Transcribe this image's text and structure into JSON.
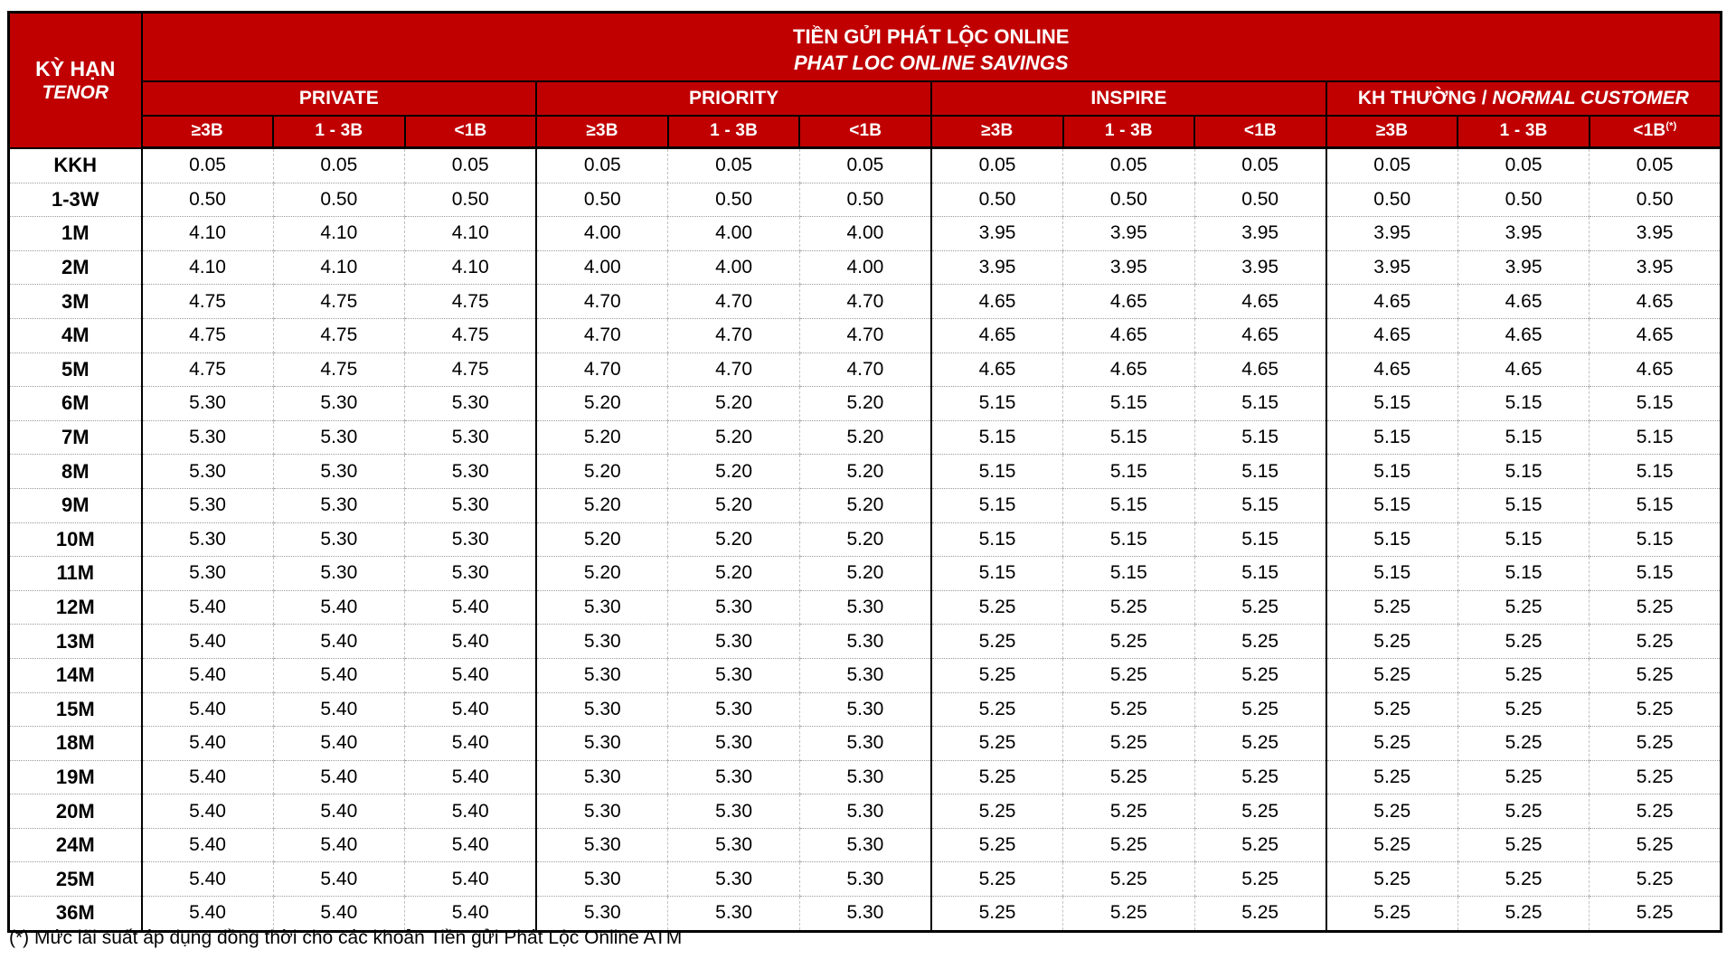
{
  "title": {
    "line1": "TIỀN GỬI PHÁT LỘC ONLINE",
    "line2": "PHAT LOC ONLINE SAVINGS"
  },
  "tenor_header": {
    "line1": "KỲ HẠN",
    "line2": "TENOR"
  },
  "groups": [
    {
      "label": "PRIVATE",
      "label_sep": "",
      "label_italic": "",
      "subcols": [
        "≥3B",
        "1 - 3B",
        "<1B"
      ]
    },
    {
      "label": "PRIORITY",
      "label_sep": "",
      "label_italic": "",
      "subcols": [
        "≥3B",
        "1 - 3B",
        "<1B"
      ]
    },
    {
      "label": "INSPIRE",
      "label_sep": "",
      "label_italic": "",
      "subcols": [
        "≥3B",
        "1 - 3B",
        "<1B"
      ]
    },
    {
      "label": "KH THƯỜNG",
      "label_sep": " / ",
      "label_italic": "NORMAL CUSTOMER",
      "subcols": [
        "≥3B",
        "1 - 3B",
        "<1B"
      ],
      "last_subcol_sup": "(*)"
    }
  ],
  "rows": [
    {
      "tenor": "KKH",
      "values": [
        "0.05",
        "0.05",
        "0.05",
        "0.05",
        "0.05",
        "0.05",
        "0.05",
        "0.05",
        "0.05",
        "0.05",
        "0.05",
        "0.05"
      ]
    },
    {
      "tenor": "1-3W",
      "values": [
        "0.50",
        "0.50",
        "0.50",
        "0.50",
        "0.50",
        "0.50",
        "0.50",
        "0.50",
        "0.50",
        "0.50",
        "0.50",
        "0.50"
      ]
    },
    {
      "tenor": "1M",
      "values": [
        "4.10",
        "4.10",
        "4.10",
        "4.00",
        "4.00",
        "4.00",
        "3.95",
        "3.95",
        "3.95",
        "3.95",
        "3.95",
        "3.95"
      ]
    },
    {
      "tenor": "2M",
      "values": [
        "4.10",
        "4.10",
        "4.10",
        "4.00",
        "4.00",
        "4.00",
        "3.95",
        "3.95",
        "3.95",
        "3.95",
        "3.95",
        "3.95"
      ]
    },
    {
      "tenor": "3M",
      "values": [
        "4.75",
        "4.75",
        "4.75",
        "4.70",
        "4.70",
        "4.70",
        "4.65",
        "4.65",
        "4.65",
        "4.65",
        "4.65",
        "4.65"
      ]
    },
    {
      "tenor": "4M",
      "values": [
        "4.75",
        "4.75",
        "4.75",
        "4.70",
        "4.70",
        "4.70",
        "4.65",
        "4.65",
        "4.65",
        "4.65",
        "4.65",
        "4.65"
      ]
    },
    {
      "tenor": "5M",
      "values": [
        "4.75",
        "4.75",
        "4.75",
        "4.70",
        "4.70",
        "4.70",
        "4.65",
        "4.65",
        "4.65",
        "4.65",
        "4.65",
        "4.65"
      ]
    },
    {
      "tenor": "6M",
      "values": [
        "5.30",
        "5.30",
        "5.30",
        "5.20",
        "5.20",
        "5.20",
        "5.15",
        "5.15",
        "5.15",
        "5.15",
        "5.15",
        "5.15"
      ]
    },
    {
      "tenor": "7M",
      "values": [
        "5.30",
        "5.30",
        "5.30",
        "5.20",
        "5.20",
        "5.20",
        "5.15",
        "5.15",
        "5.15",
        "5.15",
        "5.15",
        "5.15"
      ]
    },
    {
      "tenor": "8M",
      "values": [
        "5.30",
        "5.30",
        "5.30",
        "5.20",
        "5.20",
        "5.20",
        "5.15",
        "5.15",
        "5.15",
        "5.15",
        "5.15",
        "5.15"
      ]
    },
    {
      "tenor": "9M",
      "values": [
        "5.30",
        "5.30",
        "5.30",
        "5.20",
        "5.20",
        "5.20",
        "5.15",
        "5.15",
        "5.15",
        "5.15",
        "5.15",
        "5.15"
      ]
    },
    {
      "tenor": "10M",
      "values": [
        "5.30",
        "5.30",
        "5.30",
        "5.20",
        "5.20",
        "5.20",
        "5.15",
        "5.15",
        "5.15",
        "5.15",
        "5.15",
        "5.15"
      ]
    },
    {
      "tenor": "11M",
      "values": [
        "5.30",
        "5.30",
        "5.30",
        "5.20",
        "5.20",
        "5.20",
        "5.15",
        "5.15",
        "5.15",
        "5.15",
        "5.15",
        "5.15"
      ]
    },
    {
      "tenor": "12M",
      "values": [
        "5.40",
        "5.40",
        "5.40",
        "5.30",
        "5.30",
        "5.30",
        "5.25",
        "5.25",
        "5.25",
        "5.25",
        "5.25",
        "5.25"
      ]
    },
    {
      "tenor": "13M",
      "values": [
        "5.40",
        "5.40",
        "5.40",
        "5.30",
        "5.30",
        "5.30",
        "5.25",
        "5.25",
        "5.25",
        "5.25",
        "5.25",
        "5.25"
      ]
    },
    {
      "tenor": "14M",
      "values": [
        "5.40",
        "5.40",
        "5.40",
        "5.30",
        "5.30",
        "5.30",
        "5.25",
        "5.25",
        "5.25",
        "5.25",
        "5.25",
        "5.25"
      ]
    },
    {
      "tenor": "15M",
      "values": [
        "5.40",
        "5.40",
        "5.40",
        "5.30",
        "5.30",
        "5.30",
        "5.25",
        "5.25",
        "5.25",
        "5.25",
        "5.25",
        "5.25"
      ]
    },
    {
      "tenor": "18M",
      "values": [
        "5.40",
        "5.40",
        "5.40",
        "5.30",
        "5.30",
        "5.30",
        "5.25",
        "5.25",
        "5.25",
        "5.25",
        "5.25",
        "5.25"
      ]
    },
    {
      "tenor": "19M",
      "values": [
        "5.40",
        "5.40",
        "5.40",
        "5.30",
        "5.30",
        "5.30",
        "5.25",
        "5.25",
        "5.25",
        "5.25",
        "5.25",
        "5.25"
      ]
    },
    {
      "tenor": "20M",
      "values": [
        "5.40",
        "5.40",
        "5.40",
        "5.30",
        "5.30",
        "5.30",
        "5.25",
        "5.25",
        "5.25",
        "5.25",
        "5.25",
        "5.25"
      ]
    },
    {
      "tenor": "24M",
      "values": [
        "5.40",
        "5.40",
        "5.40",
        "5.30",
        "5.30",
        "5.30",
        "5.25",
        "5.25",
        "5.25",
        "5.25",
        "5.25",
        "5.25"
      ]
    },
    {
      "tenor": "25M",
      "values": [
        "5.40",
        "5.40",
        "5.40",
        "5.30",
        "5.30",
        "5.30",
        "5.25",
        "5.25",
        "5.25",
        "5.25",
        "5.25",
        "5.25"
      ]
    },
    {
      "tenor": "36M",
      "values": [
        "5.40",
        "5.40",
        "5.40",
        "5.30",
        "5.30",
        "5.30",
        "5.25",
        "5.25",
        "5.25",
        "5.25",
        "5.25",
        "5.25"
      ]
    }
  ],
  "footnote": "(*) Mức lãi suất áp dụng đồng thời cho các khoản Tiền gửi Phát Lộc Online ATM",
  "colors": {
    "header_red": "#C00000",
    "border_black": "#000000",
    "grid_dotted_gray": "#9A9A9A",
    "text": "#000000"
  }
}
